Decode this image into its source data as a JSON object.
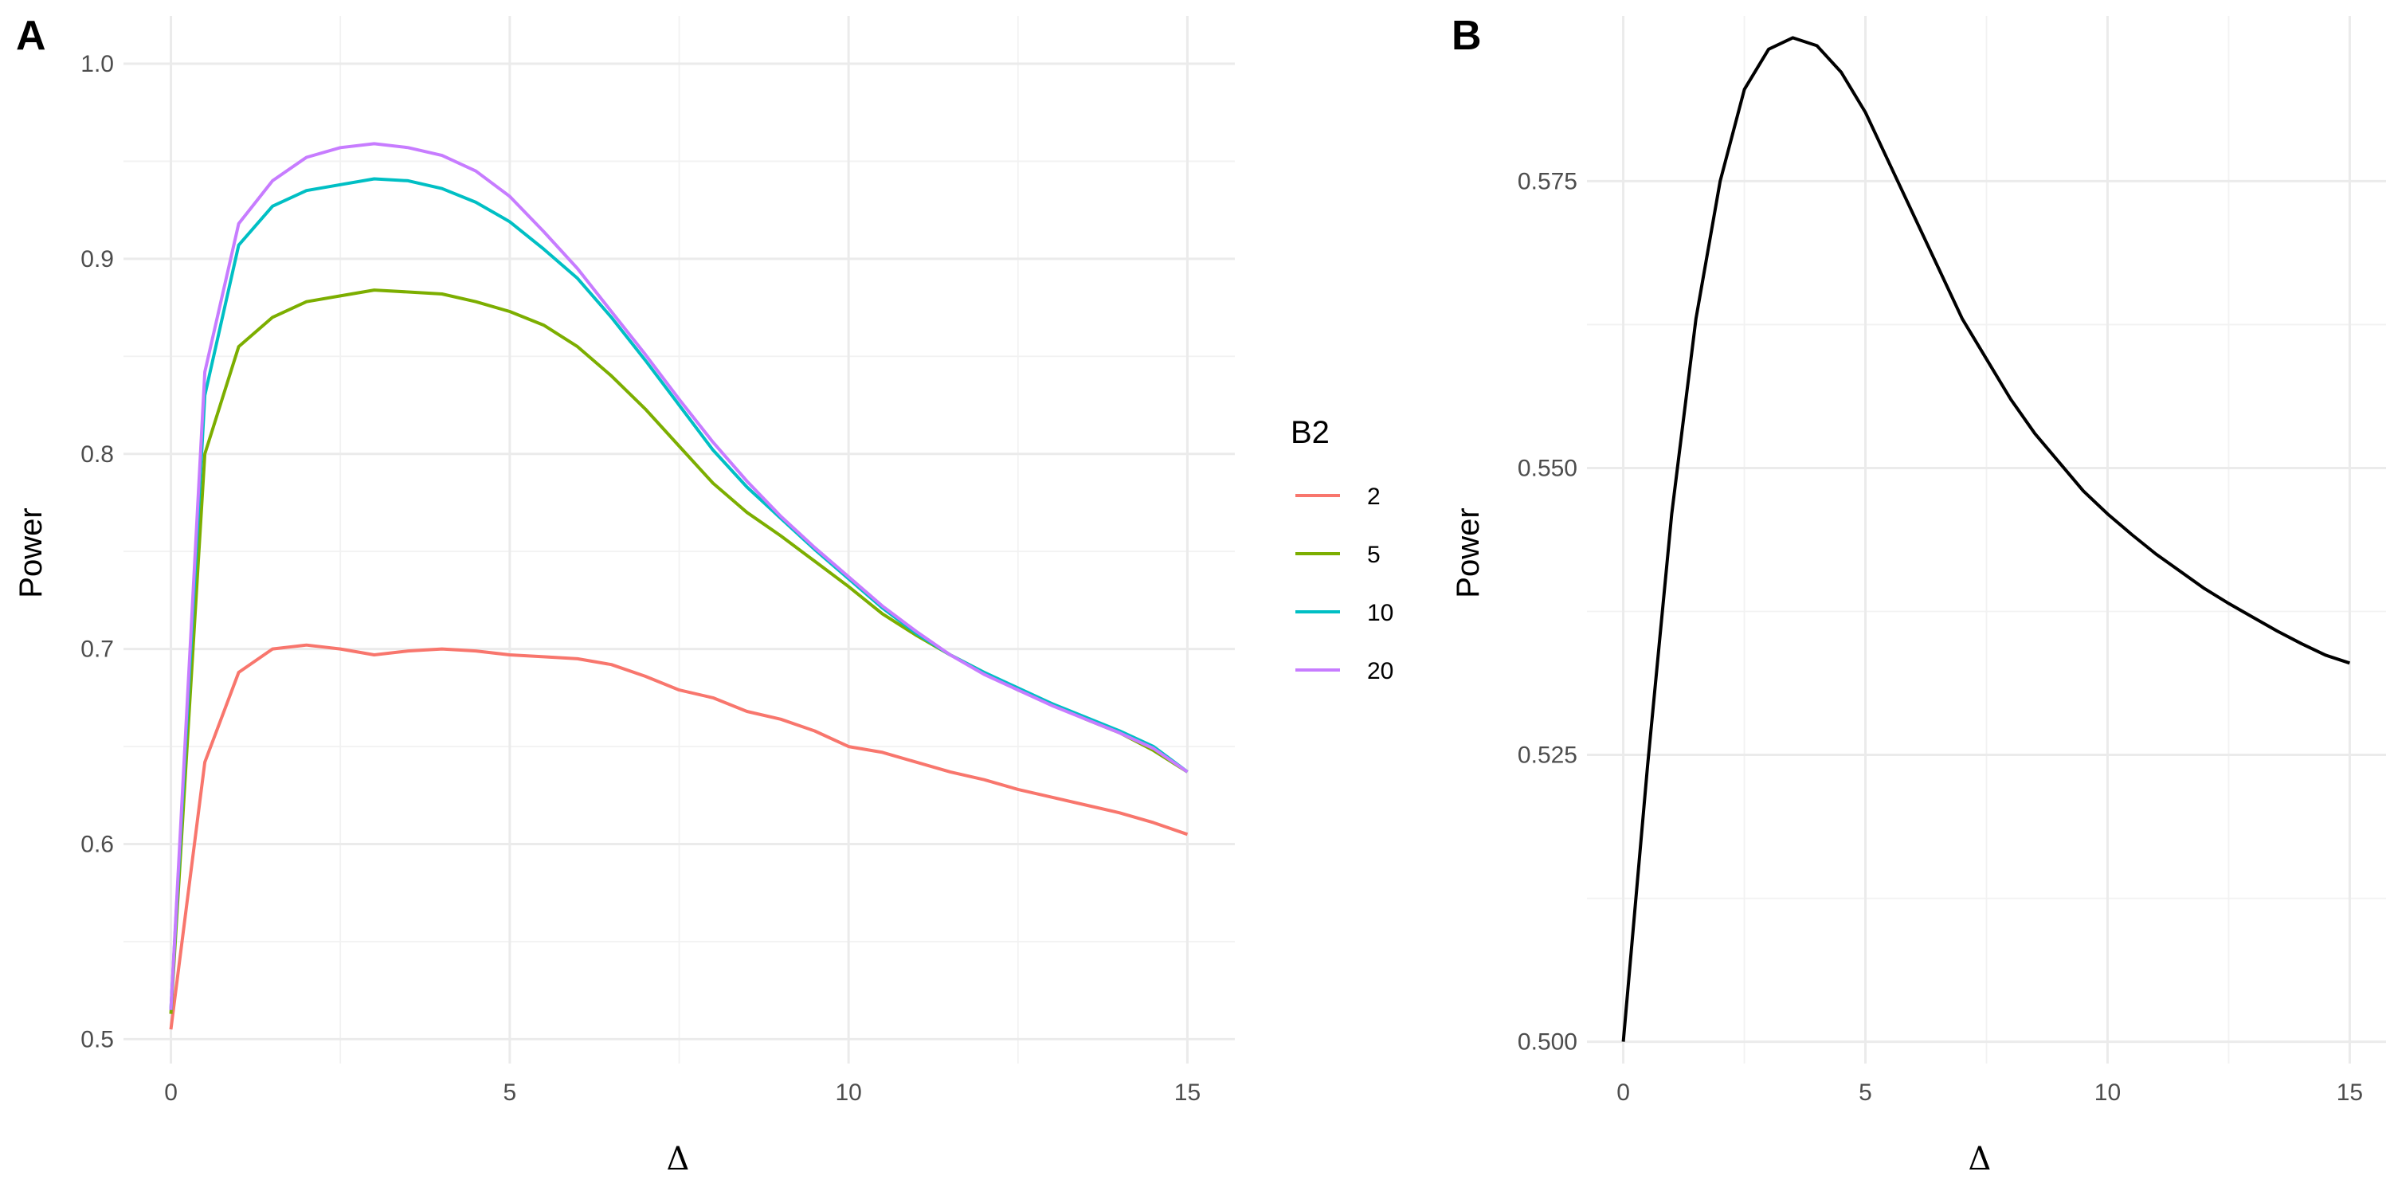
{
  "chart_data": [
    {
      "type": "line",
      "panel_label": "A",
      "xlabel": "Δ",
      "ylabel": "Power",
      "xlim": [
        -0.7,
        15.7
      ],
      "ylim": [
        0.4875,
        1.0245
      ],
      "x_ticks": [
        "0",
        "5",
        "10",
        "15"
      ],
      "y_ticks": [
        "0.5",
        "0.6",
        "0.7",
        "0.8",
        "0.9",
        "1.0"
      ],
      "grid": true,
      "legend": {
        "title": "B2",
        "placement": "right",
        "entries": [
          "2",
          "5",
          "10",
          "20"
        ]
      },
      "x": [
        0,
        0.5,
        1,
        1.5,
        2,
        2.5,
        3,
        3.5,
        4,
        4.5,
        5,
        5.5,
        6,
        6.5,
        7,
        7.5,
        8,
        8.5,
        9,
        9.5,
        10,
        10.5,
        11,
        11.5,
        12,
        12.5,
        13,
        13.5,
        14,
        14.5,
        15
      ],
      "series": [
        {
          "name": "2",
          "color": "#F8766D",
          "values": [
            0.505,
            0.642,
            0.688,
            0.7,
            0.702,
            0.7,
            0.697,
            0.699,
            0.7,
            0.699,
            0.697,
            0.696,
            0.695,
            0.692,
            0.686,
            0.679,
            0.675,
            0.668,
            0.664,
            0.658,
            0.65,
            0.647,
            0.642,
            0.637,
            0.633,
            0.628,
            0.624,
            0.62,
            0.616,
            0.611,
            0.605
          ]
        },
        {
          "name": "5",
          "color": "#7CAE00",
          "values": [
            0.513,
            0.8,
            0.855,
            0.87,
            0.878,
            0.881,
            0.884,
            0.883,
            0.882,
            0.878,
            0.873,
            0.866,
            0.855,
            0.84,
            0.823,
            0.804,
            0.785,
            0.77,
            0.758,
            0.745,
            0.732,
            0.718,
            0.707,
            0.697,
            0.688,
            0.679,
            0.672,
            0.664,
            0.657,
            0.648,
            0.637
          ]
        },
        {
          "name": "10",
          "color": "#00BFC4",
          "values": [
            0.515,
            0.83,
            0.907,
            0.927,
            0.935,
            0.938,
            0.941,
            0.94,
            0.936,
            0.929,
            0.919,
            0.905,
            0.89,
            0.87,
            0.848,
            0.825,
            0.802,
            0.783,
            0.767,
            0.751,
            0.736,
            0.721,
            0.708,
            0.697,
            0.688,
            0.68,
            0.672,
            0.665,
            0.658,
            0.65,
            0.637
          ]
        },
        {
          "name": "20",
          "color": "#C77CFF",
          "values": [
            0.515,
            0.842,
            0.918,
            0.94,
            0.952,
            0.957,
            0.959,
            0.957,
            0.953,
            0.945,
            0.932,
            0.914,
            0.895,
            0.873,
            0.851,
            0.828,
            0.806,
            0.786,
            0.768,
            0.752,
            0.737,
            0.722,
            0.709,
            0.697,
            0.687,
            0.679,
            0.671,
            0.664,
            0.657,
            0.649,
            0.637
          ]
        }
      ]
    },
    {
      "type": "line",
      "panel_label": "B",
      "xlabel": "Δ",
      "ylabel": "Power",
      "xlim": [
        -0.75,
        15.75
      ],
      "ylim": [
        0.4981,
        0.5894
      ],
      "x_ticks": [
        "0",
        "5",
        "10",
        "15"
      ],
      "y_ticks": [
        "0.500",
        "0.525",
        "0.550",
        "0.575"
      ],
      "grid": true,
      "x": [
        0,
        0.5,
        1,
        1.5,
        2,
        2.5,
        3,
        3.5,
        4,
        4.5,
        5,
        5.5,
        6,
        6.5,
        7,
        7.5,
        8,
        8.5,
        9,
        9.5,
        10,
        10.5,
        11,
        11.5,
        12,
        12.5,
        13,
        13.5,
        14,
        14.5,
        15
      ],
      "series": [
        {
          "color": "#000000",
          "values": [
            0.5,
            0.524,
            0.546,
            0.563,
            0.575,
            0.583,
            0.5865,
            0.5875,
            0.5868,
            0.5845,
            0.581,
            0.5765,
            0.572,
            0.5675,
            0.563,
            0.5595,
            0.556,
            0.553,
            0.5505,
            0.548,
            0.546,
            0.5442,
            0.5425,
            0.541,
            0.5395,
            0.5382,
            0.537,
            0.5358,
            0.5347,
            0.5337,
            0.533
          ]
        }
      ]
    }
  ]
}
